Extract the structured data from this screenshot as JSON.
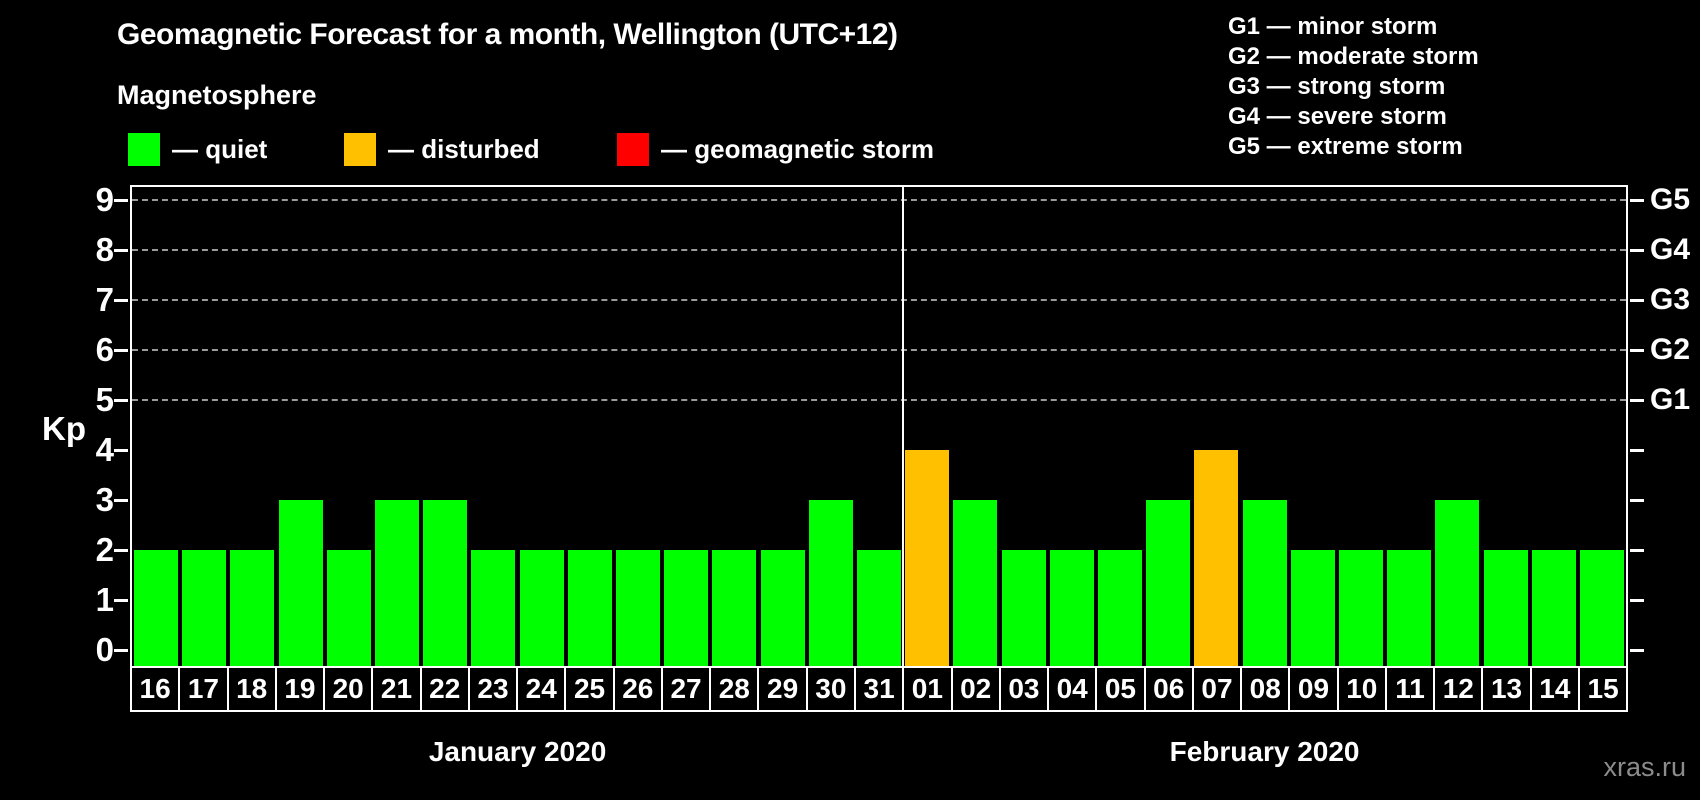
{
  "header": {
    "title": "Geomagnetic Forecast for a month, Wellington (UTC+12)",
    "subtitle": "Magnetosphere"
  },
  "legend": {
    "items": [
      {
        "name": "quiet",
        "label": "— quiet",
        "color": "#00ff00"
      },
      {
        "name": "disturbed",
        "label": "— disturbed",
        "color": "#ffc000"
      },
      {
        "name": "storm",
        "label": "— geomagnetic storm",
        "color": "#ff0000"
      }
    ]
  },
  "g_legend": {
    "items": [
      {
        "label": "G1 — minor storm"
      },
      {
        "label": "G2 — moderate storm"
      },
      {
        "label": "G3 — strong storm"
      },
      {
        "label": "G4 — severe storm"
      },
      {
        "label": "G5 — extreme storm"
      }
    ]
  },
  "watermark": "xras.ru",
  "chart_data": {
    "type": "bar",
    "title": "Geomagnetic Forecast for a month, Wellington (UTC+12)",
    "ylabel": "Kp",
    "ylim": [
      0,
      9
    ],
    "yticks": [
      0,
      1,
      2,
      3,
      4,
      5,
      6,
      7,
      8,
      9
    ],
    "gridlines": [
      5,
      6,
      7,
      8,
      9
    ],
    "grid_style": "dashed",
    "right_axis_labels": [
      {
        "value": 5,
        "label": "G1"
      },
      {
        "value": 6,
        "label": "G2"
      },
      {
        "value": 7,
        "label": "G3"
      },
      {
        "value": 8,
        "label": "G4"
      },
      {
        "value": 9,
        "label": "G5"
      }
    ],
    "months": [
      {
        "label": "January 2020",
        "num_days": 16
      },
      {
        "label": "February 2020",
        "num_days": 15
      }
    ],
    "categories": [
      "16",
      "17",
      "18",
      "19",
      "20",
      "21",
      "22",
      "23",
      "24",
      "25",
      "26",
      "27",
      "28",
      "29",
      "30",
      "31",
      "01",
      "02",
      "03",
      "04",
      "05",
      "06",
      "07",
      "08",
      "09",
      "10",
      "11",
      "12",
      "13",
      "14",
      "15"
    ],
    "values": [
      2,
      2,
      2,
      3,
      2,
      3,
      3,
      2,
      2,
      2,
      2,
      2,
      2,
      2,
      3,
      2,
      4,
      3,
      2,
      2,
      2,
      3,
      4,
      3,
      2,
      2,
      2,
      3,
      2,
      2,
      2
    ],
    "status": [
      "quiet",
      "quiet",
      "quiet",
      "quiet",
      "quiet",
      "quiet",
      "quiet",
      "quiet",
      "quiet",
      "quiet",
      "quiet",
      "quiet",
      "quiet",
      "quiet",
      "quiet",
      "quiet",
      "disturbed",
      "quiet",
      "quiet",
      "quiet",
      "quiet",
      "quiet",
      "disturbed",
      "quiet",
      "quiet",
      "quiet",
      "quiet",
      "quiet",
      "quiet",
      "quiet",
      "quiet"
    ],
    "colors": {
      "quiet": "#00ff00",
      "disturbed": "#ffc000",
      "storm": "#ff0000"
    }
  }
}
